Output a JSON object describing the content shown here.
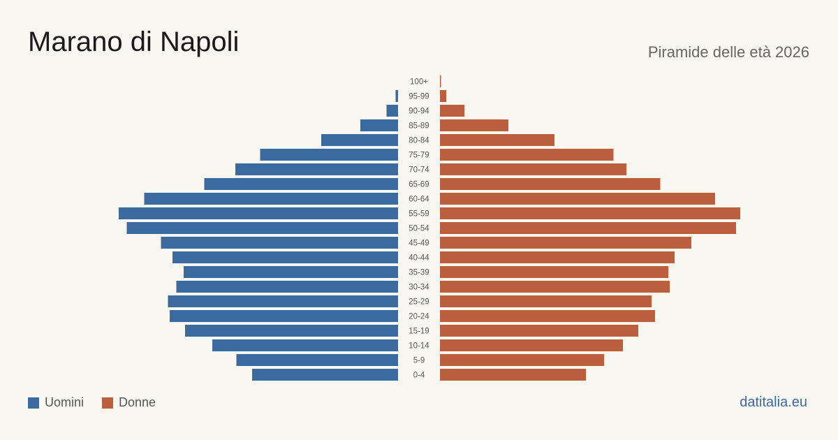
{
  "header": {
    "title": "Marano di Napoli",
    "subtitle": "Piramide delle età 2026"
  },
  "legend": {
    "items": [
      {
        "label": "Uomini",
        "color": "#3a6aa0"
      },
      {
        "label": "Donne",
        "color": "#bb5f3e"
      }
    ]
  },
  "footer": {
    "source": "datitalia.eu"
  },
  "chart_data": {
    "type": "bar",
    "orientation": "horizontal",
    "layout": "population-pyramid",
    "categories": [
      "100+",
      "95-99",
      "90-94",
      "85-89",
      "80-84",
      "75-79",
      "70-74",
      "65-69",
      "60-64",
      "55-59",
      "50-54",
      "45-49",
      "40-44",
      "35-39",
      "30-34",
      "25-29",
      "20-24",
      "15-19",
      "10-14",
      "5-9",
      "0-4"
    ],
    "series": [
      {
        "name": "Uomini",
        "color": "#3a6aa0",
        "side": "left",
        "values": [
          0,
          7,
          33,
          108,
          220,
          395,
          466,
          555,
          727,
          800,
          777,
          679,
          646,
          614,
          635,
          659,
          654,
          610,
          532,
          463,
          418
        ]
      },
      {
        "name": "Donne",
        "color": "#bb5f3e",
        "side": "right",
        "values": [
          3,
          18,
          70,
          196,
          328,
          497,
          534,
          631,
          788,
          860,
          848,
          720,
          672,
          654,
          658,
          606,
          616,
          568,
          524,
          470,
          418
        ]
      }
    ],
    "grid": false,
    "legend_position": "bottom-left"
  }
}
